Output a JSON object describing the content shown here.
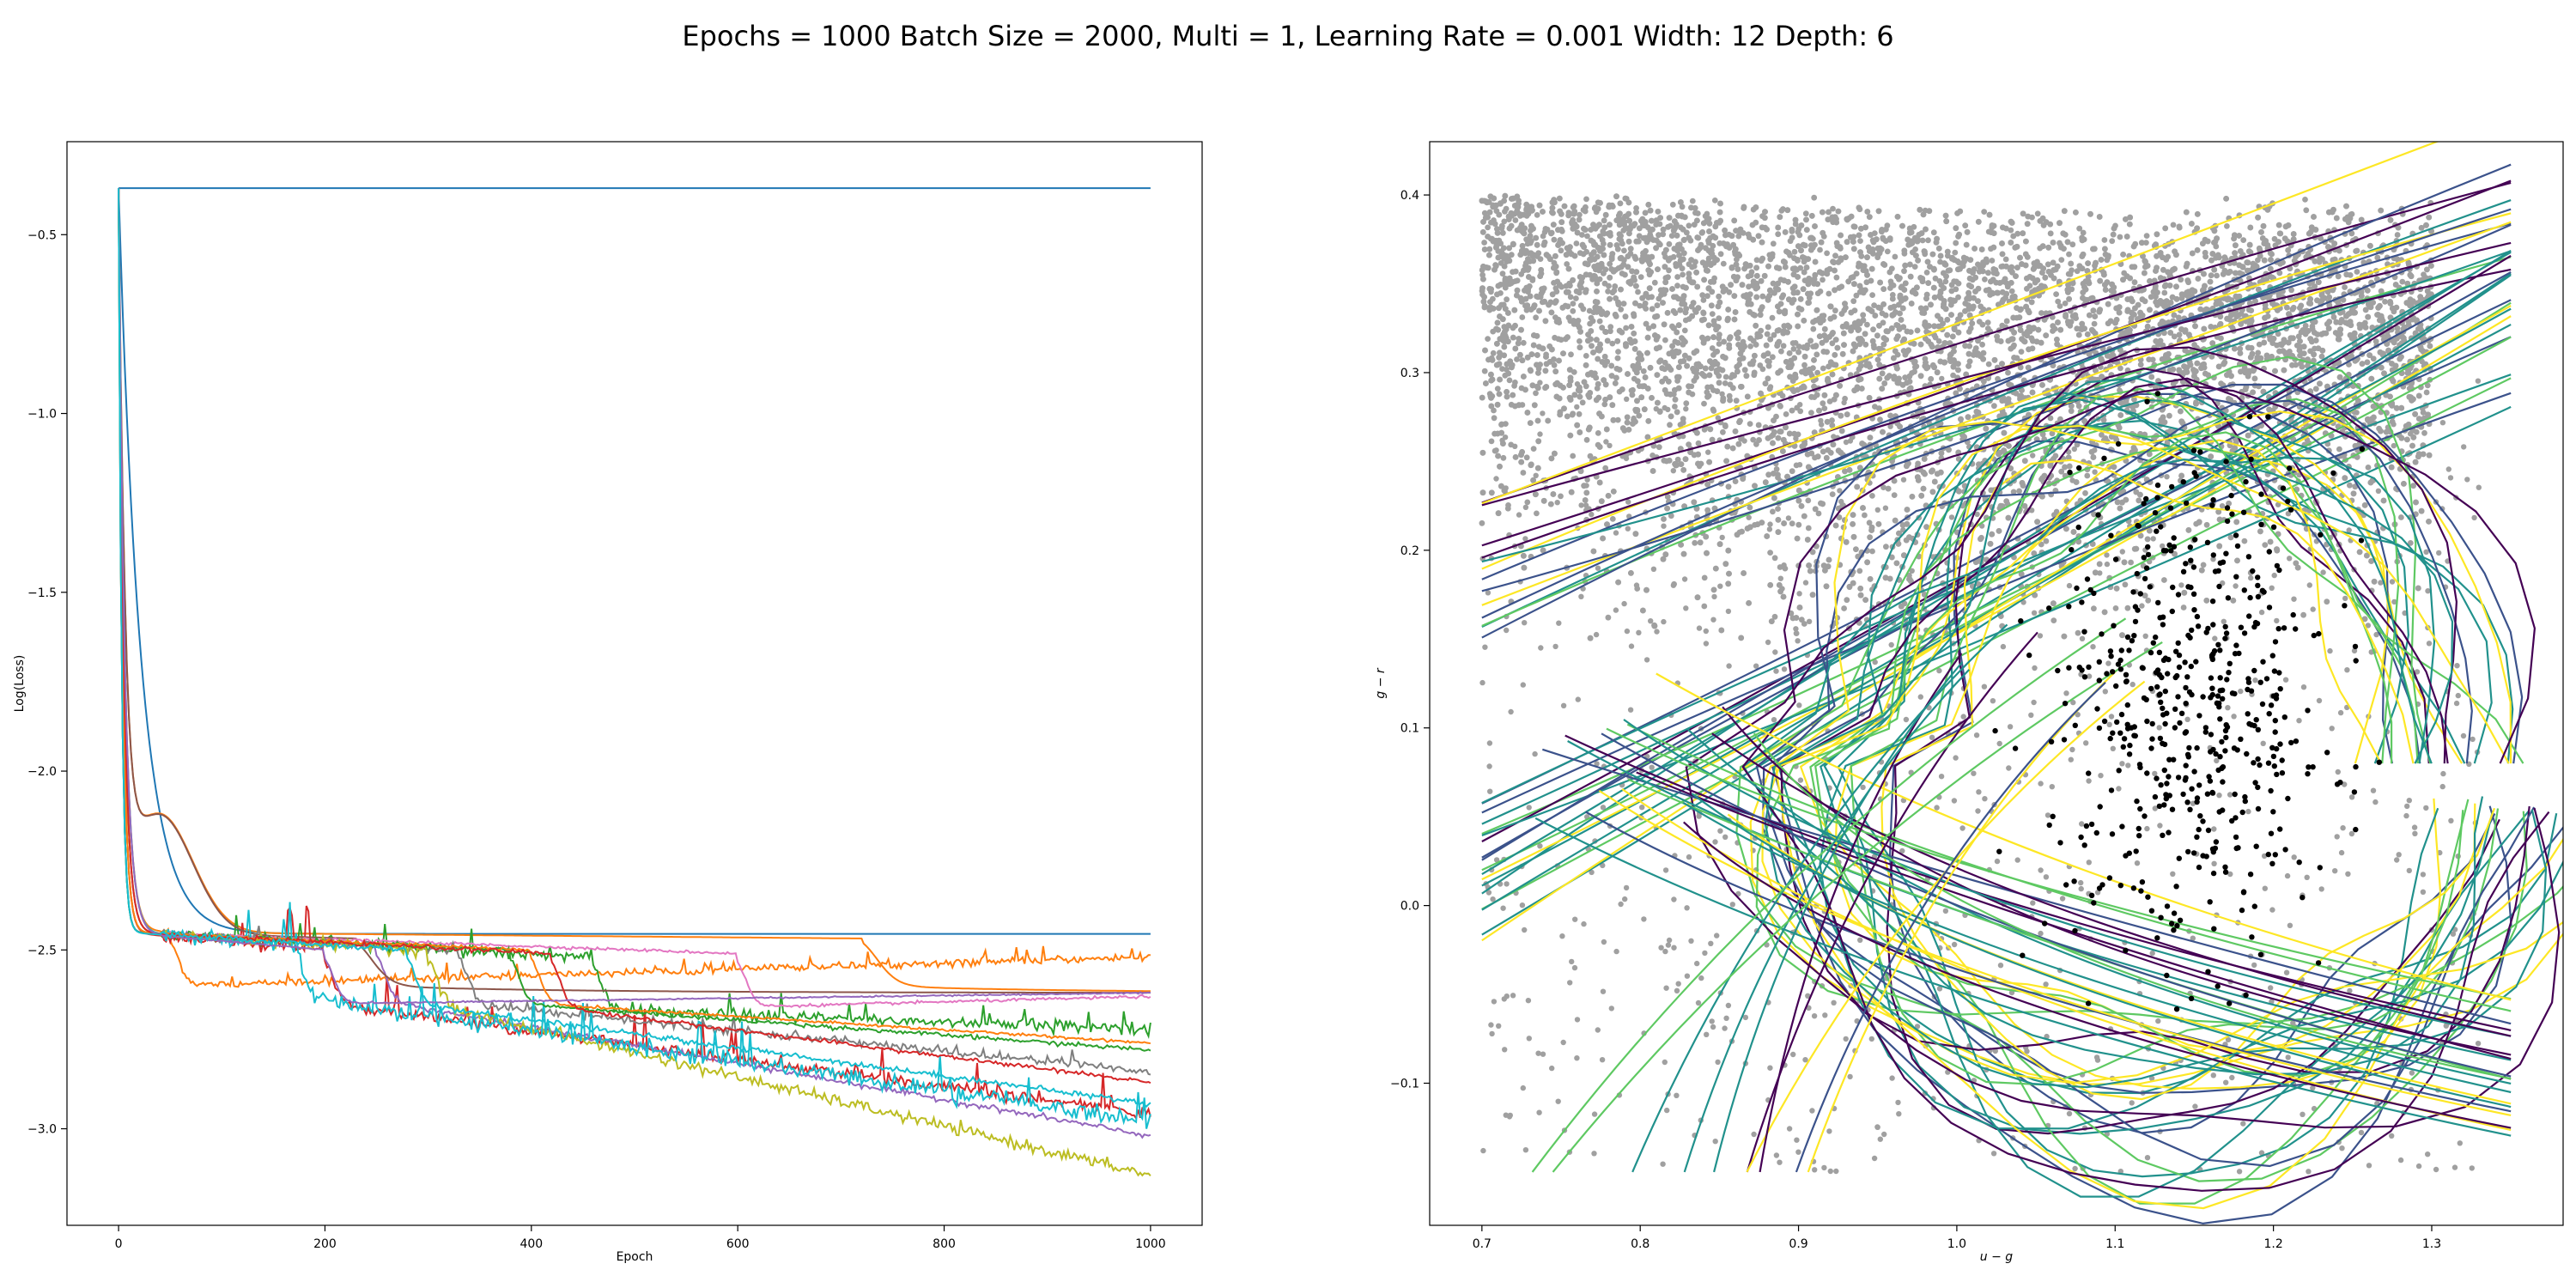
{
  "figure": {
    "suptitle": "Epochs = 1000 Batch Size = 2000, Multi = 1, Learning Rate = 0.001 Width: 12 Depth: 6"
  },
  "chart_data": [
    {
      "type": "line",
      "xlabel": "Epoch",
      "ylabel": "Log(Loss)",
      "xlim": [
        -50,
        1050
      ],
      "ylim": [
        -3.27,
        -0.24
      ],
      "xticks": [
        0,
        200,
        400,
        600,
        800,
        1000
      ],
      "yticks": [
        -3.0,
        -2.5,
        -2.0,
        -1.5,
        -1.0,
        -0.5
      ],
      "x_tick_labels": [
        "0",
        "200",
        "400",
        "600",
        "800",
        "1000"
      ],
      "y_tick_labels": [
        "−3.0",
        "−2.5",
        "−2.0",
        "−1.5",
        "−1.0",
        "−0.5"
      ],
      "grid": false,
      "start_value": -0.37,
      "plateau_value": -2.45,
      "series": [
        {
          "color": "#1f77b4",
          "kind": "flat",
          "final": -0.37
        },
        {
          "color": "#1f77b4",
          "kind": "slowdecay",
          "tau": 22,
          "final": -2.455,
          "noise": 0
        },
        {
          "color": "#ff7f0e",
          "kind": "hump",
          "hump_end": 150,
          "drop_at": 720,
          "final": -2.62,
          "noise": 0
        },
        {
          "color": "#ff7f0e",
          "kind": "noisy",
          "drop_at": 50,
          "final": -2.52,
          "noise": 0.005,
          "spikes": 0.02
        },
        {
          "color": "#2ca02c",
          "kind": "step",
          "drop_at": 460,
          "plateau": -2.52,
          "final": -2.72,
          "noise": 0.008,
          "spikes": 0.03
        },
        {
          "color": "#d62728",
          "kind": "step",
          "drop_at": 200,
          "plateau": -2.5,
          "final": -2.96,
          "noise": 0.008,
          "spikes": 0.06
        },
        {
          "color": "#9467bd",
          "kind": "step",
          "drop_at": 250,
          "plateau": -2.49,
          "final": -3.02,
          "noise": 0.004,
          "spikes": 0
        },
        {
          "color": "#8c564b",
          "kind": "hump",
          "hump_end": 200,
          "drop_at": 230,
          "final": -2.62,
          "noise": 0
        },
        {
          "color": "#e377c2",
          "kind": "step",
          "drop_at": 600,
          "plateau": -2.51,
          "final": -2.63,
          "noise": 0.002,
          "spikes": 0
        },
        {
          "color": "#7f7f7f",
          "kind": "step",
          "drop_at": 330,
          "plateau": -2.5,
          "final": -2.84,
          "noise": 0.006,
          "spikes": 0.02
        },
        {
          "color": "#bcbd22",
          "kind": "step",
          "drop_at": 300,
          "plateau": -2.5,
          "final": -3.13,
          "noise": 0.008,
          "spikes": 0
        },
        {
          "color": "#17becf",
          "kind": "step",
          "drop_at": 170,
          "plateau": -2.48,
          "final": -2.98,
          "noise": 0.012,
          "spikes": 0.05
        },
        {
          "color": "#2ca02c",
          "kind": "step",
          "drop_at": 380,
          "plateau": -2.5,
          "final": -2.78,
          "noise": 0.003,
          "spikes": 0
        },
        {
          "color": "#ff7f0e",
          "kind": "step",
          "drop_at": 400,
          "plateau": -2.5,
          "final": -2.76,
          "noise": 0.002,
          "spikes": 0
        },
        {
          "color": "#d62728",
          "kind": "step",
          "drop_at": 420,
          "plateau": -2.51,
          "final": -2.87,
          "noise": 0.003,
          "spikes": 0
        },
        {
          "color": "#9467bd",
          "kind": "step",
          "drop_at": 200,
          "plateau": -2.5,
          "final": -2.62,
          "noise": 0.001,
          "spikes": 0
        },
        {
          "color": "#17becf",
          "kind": "step",
          "drop_at": 280,
          "plateau": -2.5,
          "final": -2.93,
          "noise": 0.004,
          "spikes": 0
        }
      ]
    },
    {
      "type": "scatter",
      "xlabel": "u − g",
      "ylabel": "g − r",
      "xlim": [
        0.667,
        1.383
      ],
      "ylim": [
        -0.18,
        0.43
      ],
      "xticks": [
        0.7,
        0.8,
        0.9,
        1.0,
        1.1,
        1.2,
        1.3
      ],
      "yticks": [
        -0.1,
        0.0,
        0.1,
        0.2,
        0.3,
        0.4
      ],
      "x_tick_labels": [
        "0.7",
        "0.8",
        "0.9",
        "1.0",
        "1.1",
        "1.2",
        "1.3"
      ],
      "y_tick_labels": [
        "−0.1",
        "0.0",
        "0.1",
        "0.2",
        "0.3",
        "0.4"
      ],
      "grid": false,
      "background_points_color": "#a0a0a0",
      "class_points_color": "#000000",
      "background_region": {
        "x": [
          0.7,
          1.3
        ],
        "y_top": 0.4
      },
      "class_region": {
        "center": [
          1.15,
          0.11
        ],
        "sigma": [
          0.045,
          0.07
        ]
      },
      "decision_boundaries": {
        "colormap": "viridis",
        "colors": [
          "#440154",
          "#3b528b",
          "#21918c",
          "#5ec962",
          "#fde725"
        ],
        "families": [
          {
            "type": "line",
            "x0": 0.7,
            "y0": 0.19,
            "x1": 1.35,
            "y1": 0.4,
            "count": 14
          },
          {
            "type": "line",
            "x0": 0.7,
            "y0": 0.02,
            "x1": 1.35,
            "y1": 0.32,
            "count": 18
          },
          {
            "type": "loop",
            "center": [
              1.13,
              0.08
            ],
            "rx": 0.19,
            "ry": 0.2,
            "count": 26
          },
          {
            "type": "lower",
            "x0": 0.88,
            "y0": 0.06,
            "x1": 1.35,
            "y1": -0.09,
            "count": 22
          },
          {
            "type": "steep",
            "x0": 0.72,
            "y0": -0.15,
            "x1": 1.0,
            "y1": 0.14,
            "count": 10
          }
        ]
      }
    }
  ]
}
